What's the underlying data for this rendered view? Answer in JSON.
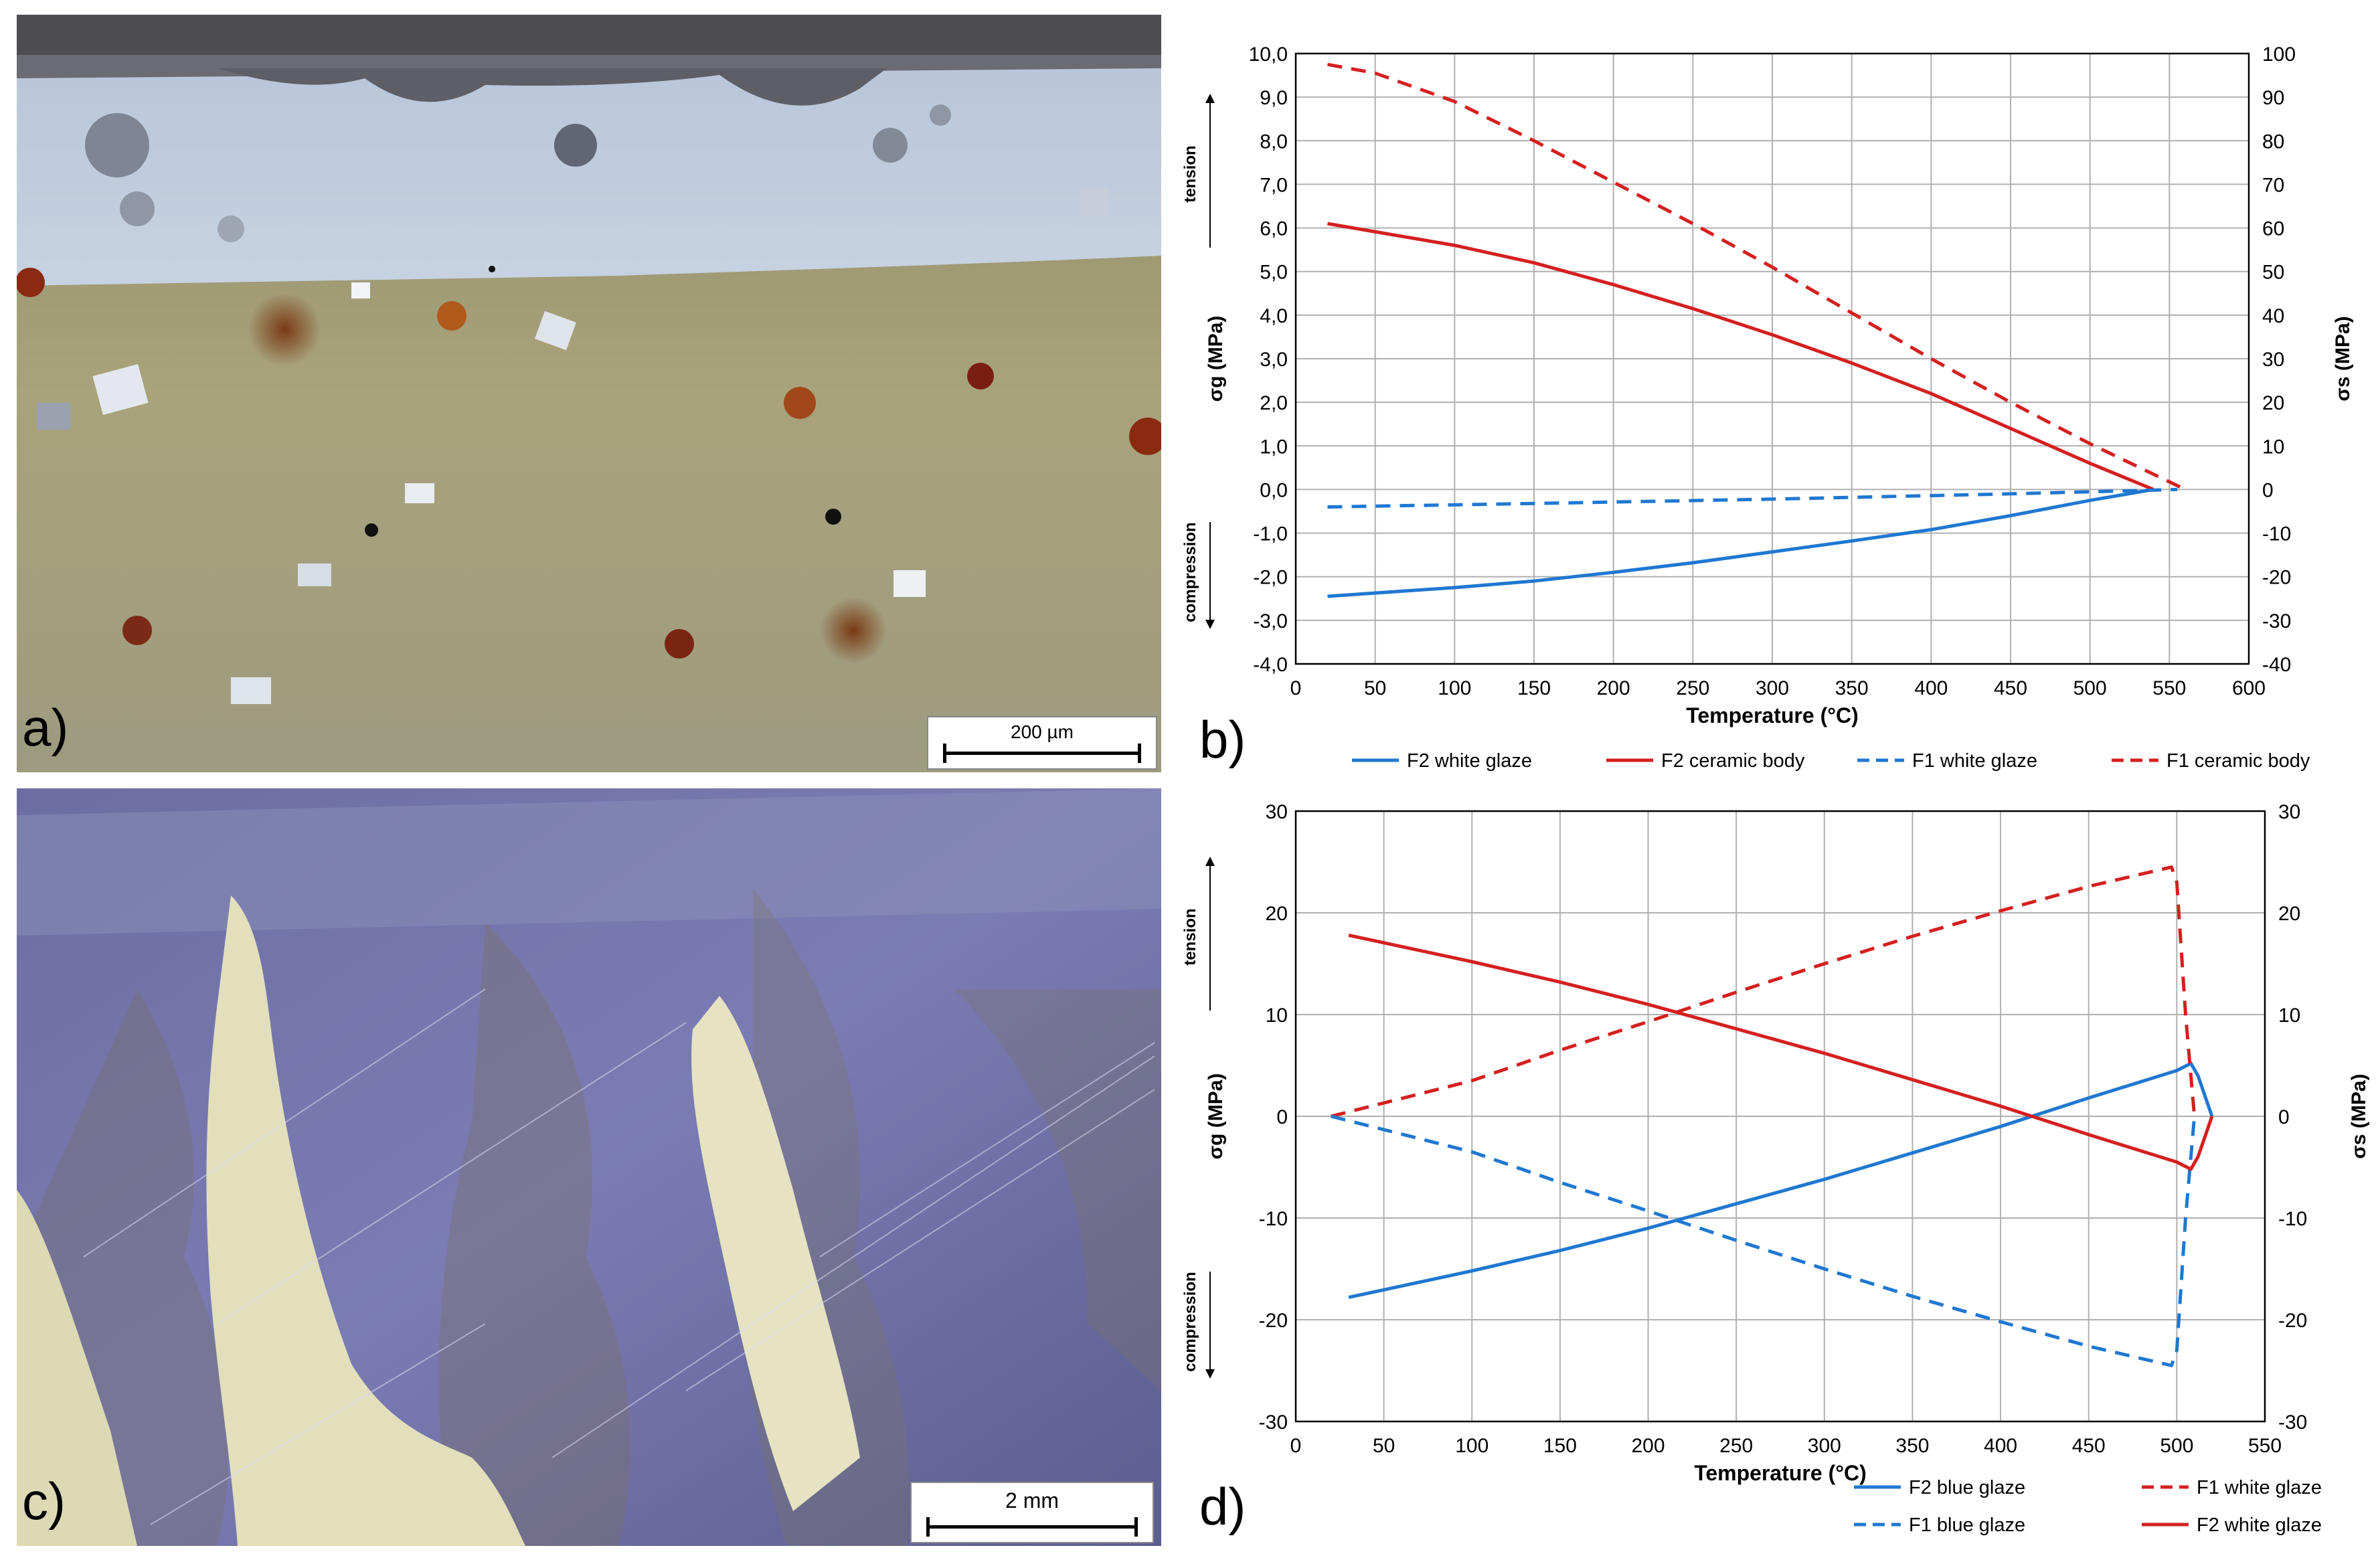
{
  "panels": {
    "a": {
      "label": "a)",
      "scale": "200 µm"
    },
    "b": {
      "label": "b)"
    },
    "c": {
      "label": "c)",
      "scale": "2 mm"
    },
    "d": {
      "label": "d)"
    }
  },
  "chart_data": [
    {
      "id": "b",
      "type": "line",
      "xlabel": "Temperature (°C)",
      "ylabel_left": "σg (MPa)",
      "ylabel_right": "σs (MPa)",
      "xlim": [
        0,
        600
      ],
      "ylim_left": [
        -4,
        10
      ],
      "ylim_right": [
        -40,
        100
      ],
      "xticks": [
        "0",
        "50",
        "100",
        "150",
        "200",
        "250",
        "300",
        "350",
        "400",
        "450",
        "500",
        "550",
        "600"
      ],
      "yticks_left": [
        "-4,0",
        "-3,0",
        "-2,0",
        "-1,0",
        "0,0",
        "1,0",
        "2,0",
        "3,0",
        "4,0",
        "5,0",
        "6,0",
        "7,0",
        "8,0",
        "9,0",
        "10,0"
      ],
      "yticks_right": [
        "-40",
        "-30",
        "-20",
        "-10",
        "0",
        "10",
        "20",
        "30",
        "40",
        "50",
        "60",
        "70",
        "80",
        "90",
        "100"
      ],
      "annotations": {
        "tension": "tension",
        "compression": "compression"
      },
      "grid": true,
      "legend_position": "bottom",
      "series": [
        {
          "name": "F2 white glaze",
          "color": "#1f78d1",
          "dash": "solid",
          "points": [
            [
              20,
              -2.45
            ],
            [
              100,
              -2.25
            ],
            [
              150,
              -2.1
            ],
            [
              200,
              -1.9
            ],
            [
              250,
              -1.68
            ],
            [
              300,
              -1.43
            ],
            [
              350,
              -1.18
            ],
            [
              400,
              -0.92
            ],
            [
              450,
              -0.6
            ],
            [
              500,
              -0.25
            ],
            [
              540,
              0.0
            ]
          ]
        },
        {
          "name": "F2 ceramic body",
          "color": "#d42020",
          "dash": "solid",
          "points": [
            [
              20,
              6.1
            ],
            [
              100,
              5.6
            ],
            [
              150,
              5.2
            ],
            [
              200,
              4.7
            ],
            [
              250,
              4.15
            ],
            [
              300,
              3.55
            ],
            [
              350,
              2.9
            ],
            [
              400,
              2.2
            ],
            [
              450,
              1.4
            ],
            [
              500,
              0.6
            ],
            [
              540,
              0.0
            ]
          ]
        },
        {
          "name": "F1 white glaze",
          "color": "#1f78d1",
          "dash": "dashed",
          "points": [
            [
              20,
              -0.4
            ],
            [
              150,
              -0.32
            ],
            [
              300,
              -0.22
            ],
            [
              450,
              -0.1
            ],
            [
              555,
              0.0
            ]
          ]
        },
        {
          "name": "F1 ceramic body",
          "color": "#d42020",
          "dash": "dashed",
          "points": [
            [
              20,
              9.75
            ],
            [
              50,
              9.55
            ],
            [
              100,
              8.9
            ],
            [
              150,
              8.0
            ],
            [
              200,
              7.05
            ],
            [
              250,
              6.1
            ],
            [
              300,
              5.1
            ],
            [
              350,
              4.05
            ],
            [
              400,
              3.0
            ],
            [
              450,
              2.0
            ],
            [
              500,
              1.05
            ],
            [
              540,
              0.35
            ],
            [
              560,
              0.0
            ]
          ]
        }
      ]
    },
    {
      "id": "d",
      "type": "line",
      "xlabel": "Temperature (°C)",
      "ylabel_left": "σg (MPa)",
      "ylabel_right": "σs (MPa)",
      "xlim": [
        0,
        550
      ],
      "ylim_left": [
        -30,
        30
      ],
      "ylim_right": [
        -30,
        30
      ],
      "xticks": [
        "0",
        "50",
        "100",
        "150",
        "200",
        "250",
        "300",
        "350",
        "400",
        "450",
        "500",
        "550"
      ],
      "yticks_left": [
        "-30",
        "-20",
        "-10",
        "0",
        "10",
        "20",
        "30"
      ],
      "yticks_right": [
        "-30",
        "-20",
        "-10",
        "0",
        "10",
        "20",
        "30"
      ],
      "annotations": {
        "tension": "tension",
        "compression": "compression"
      },
      "grid": true,
      "legend_position": "bottom",
      "series": [
        {
          "name": "F2 blue glaze",
          "color": "#1f78d1",
          "dash": "solid",
          "points": [
            [
              30,
              -17.8
            ],
            [
              100,
              -15.2
            ],
            [
              150,
              -13.2
            ],
            [
              200,
              -11.0
            ],
            [
              250,
              -8.6
            ],
            [
              300,
              -6.2
            ],
            [
              350,
              -3.6
            ],
            [
              400,
              -1.0
            ],
            [
              450,
              1.8
            ],
            [
              500,
              4.5
            ],
            [
              508,
              5.2
            ],
            [
              512,
              4.0
            ],
            [
              520,
              0.0
            ]
          ]
        },
        {
          "name": "F1 white glaze",
          "color": "#d42020",
          "dash": "dashed",
          "points": [
            [
              20,
              0.0
            ],
            [
              100,
              3.5
            ],
            [
              150,
              6.5
            ],
            [
              200,
              9.3
            ],
            [
              250,
              12.2
            ],
            [
              300,
              15.0
            ],
            [
              350,
              17.7
            ],
            [
              400,
              20.2
            ],
            [
              450,
              22.6
            ],
            [
              497,
              24.5
            ],
            [
              500,
              23.0
            ],
            [
              505,
              10.0
            ],
            [
              510,
              0.0
            ]
          ]
        },
        {
          "name": "F1 blue glaze",
          "color": "#1f78d1",
          "dash": "dashed",
          "points": [
            [
              20,
              0.0
            ],
            [
              100,
              -3.5
            ],
            [
              150,
              -6.5
            ],
            [
              200,
              -9.3
            ],
            [
              250,
              -12.2
            ],
            [
              300,
              -15.0
            ],
            [
              350,
              -17.7
            ],
            [
              400,
              -20.2
            ],
            [
              450,
              -22.6
            ],
            [
              497,
              -24.5
            ],
            [
              500,
              -23.0
            ],
            [
              505,
              -10.0
            ],
            [
              510,
              0.0
            ]
          ]
        },
        {
          "name": "F2 white glaze",
          "color": "#d42020",
          "dash": "solid",
          "points": [
            [
              30,
              17.8
            ],
            [
              100,
              15.2
            ],
            [
              150,
              13.2
            ],
            [
              200,
              11.0
            ],
            [
              250,
              8.6
            ],
            [
              300,
              6.2
            ],
            [
              350,
              3.6
            ],
            [
              400,
              1.0
            ],
            [
              450,
              -1.8
            ],
            [
              500,
              -4.5
            ],
            [
              508,
              -5.2
            ],
            [
              512,
              -4.0
            ],
            [
              520,
              0.0
            ]
          ]
        }
      ]
    }
  ]
}
